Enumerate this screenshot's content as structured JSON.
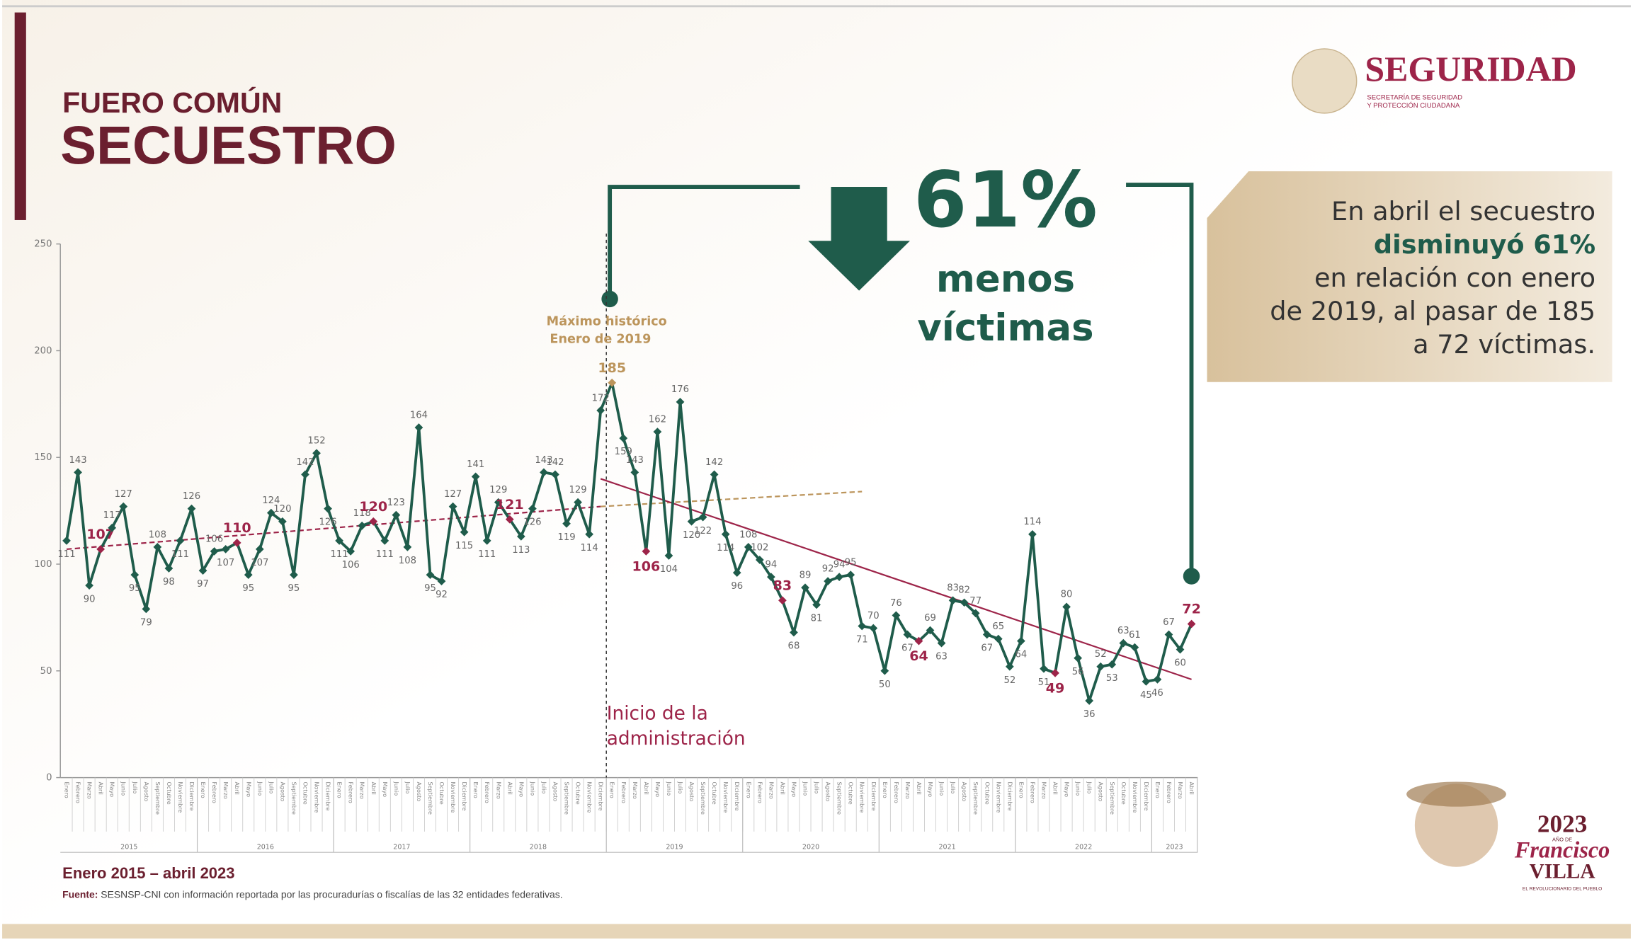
{
  "header": {
    "subtitle": "FUERO COMÚN",
    "title": "SECUESTRO"
  },
  "logo": {
    "name": "SEGURIDAD",
    "line1": "SECRETARÍA DE SEGURIDAD",
    "line2": "Y PROTECCIÓN CIUDADANA"
  },
  "chart_data": {
    "type": "line",
    "categories": [
      "Enero",
      "Febrero",
      "Marzo",
      "Abril",
      "Mayo",
      "Junio",
      "Julio",
      "Agosto",
      "Septiembre",
      "Octubre",
      "Noviembre",
      "Diciembre",
      "Enero",
      "Febrero",
      "Marzo",
      "Abril",
      "Mayo",
      "Junio",
      "Julio",
      "Agosto",
      "Septiembre",
      "Octubre",
      "Noviembre",
      "Diciembre",
      "Enero",
      "Febrero",
      "Marzo",
      "Abril",
      "Mayo",
      "Junio",
      "Julio",
      "Agosto",
      "Septiembre",
      "Octubre",
      "Noviembre",
      "Diciembre",
      "Enero",
      "Febrero",
      "Marzo",
      "Abril",
      "Mayo",
      "Junio",
      "Julio",
      "Agosto",
      "Septiembre",
      "Octubre",
      "Noviembre",
      "Diciembre",
      "Enero",
      "Febrero",
      "Marzo",
      "Abril",
      "Mayo",
      "Junio",
      "Julio",
      "Agosto",
      "Septiembre",
      "Octubre",
      "Noviembre",
      "Diciembre",
      "Enero",
      "Febrero",
      "Marzo",
      "Abril",
      "Mayo",
      "Junio",
      "Julio",
      "Agosto",
      "Septiembre",
      "Octubre",
      "Noviembre",
      "Diciembre",
      "Enero",
      "Febrero",
      "Marzo",
      "Abril",
      "Mayo",
      "Junio",
      "Julio",
      "Agosto",
      "Septiembre",
      "Octubre",
      "Noviembre",
      "Diciembre",
      "Enero",
      "Febrero",
      "Marzo",
      "Abril",
      "Mayo",
      "Junio",
      "Julio",
      "Agosto",
      "Septiembre",
      "Octubre",
      "Noviembre",
      "Diciembre",
      "Enero",
      "Febrero",
      "Marzo",
      "Abril"
    ],
    "year_labels": [
      "2015",
      "2016",
      "2017",
      "2018",
      "2019",
      "2020",
      "2021",
      "2022",
      "2023"
    ],
    "series": [
      {
        "color": "#1f5c4b",
        "values": [
          111,
          143,
          90,
          107,
          117,
          127,
          95,
          79,
          108,
          98,
          111,
          126,
          97,
          106,
          107,
          110,
          95,
          107,
          124,
          120,
          95,
          142,
          152,
          126,
          111,
          106,
          118,
          120,
          111,
          123,
          108,
          164,
          95,
          92,
          127,
          115,
          141,
          111,
          129,
          121,
          113,
          126,
          143,
          142,
          119,
          129,
          114,
          172,
          185,
          159,
          143,
          106,
          162,
          104,
          176,
          120,
          122,
          142,
          114,
          96,
          108,
          102,
          94,
          83,
          68,
          89,
          81,
          92,
          94,
          95,
          71,
          70,
          50,
          76,
          67,
          64,
          69,
          63,
          83,
          82,
          77,
          67,
          65,
          52,
          64,
          114,
          51,
          49,
          80,
          56,
          36,
          52,
          53,
          63,
          61,
          45,
          46,
          67,
          60,
          72
        ]
      }
    ],
    "highlights": [
      {
        "index": 3,
        "color": "#9d2449"
      },
      {
        "index": 15,
        "color": "#9d2449"
      },
      {
        "index": 27,
        "color": "#9d2449"
      },
      {
        "index": 39,
        "color": "#9d2449"
      },
      {
        "index": 48,
        "color": "#bc955c"
      },
      {
        "index": 51,
        "color": "#9d2449"
      },
      {
        "index": 63,
        "color": "#9d2449"
      },
      {
        "index": 75,
        "color": "#9d2449"
      },
      {
        "index": 87,
        "color": "#9d2449"
      },
      {
        "index": 99,
        "color": "#9d2449"
      }
    ],
    "ylim": [
      0,
      250
    ],
    "yticks": [
      0,
      50,
      100,
      150,
      200,
      250
    ],
    "trend_lines": [
      {
        "x0": 0,
        "y0": 107,
        "x1": 47,
        "y1": 127,
        "color": "#9d2449",
        "dashed": true
      },
      {
        "x0": 47,
        "y0": 127,
        "x1": 70,
        "y1": 134,
        "color": "#bc955c",
        "dashed": true
      },
      {
        "x0": 47,
        "y0": 140,
        "x1": 99,
        "y1": 46,
        "color": "#9d2449",
        "dashed": false
      }
    ],
    "annotations": {
      "peak_line1": "Máximo histórico",
      "peak_line2": "Enero de 2019",
      "admin_line1": "Inicio de la",
      "admin_line2": "administración",
      "period": "Enero 2015 – abril 2023"
    }
  },
  "reduction": {
    "value": "61%",
    "line1": "menos",
    "line2": "víctimas"
  },
  "callout": {
    "lines": [
      "En abril el secuestro",
      "disminuyó 61%",
      "en relación con enero",
      "de 2019, al pasar de 185",
      "a 72 víctimas."
    ]
  },
  "source": {
    "label": "Fuente:",
    "text": " SESNSP-CNI con información reportada por las procuradurías o fiscalías de las 32 entidades federativas."
  },
  "badge": {
    "year": "2023",
    "small": "AÑO DE",
    "name1": "Francisco",
    "name2": "VILLA",
    "motto": "EL REVOLUCIONARIO DEL PUEBLO"
  }
}
